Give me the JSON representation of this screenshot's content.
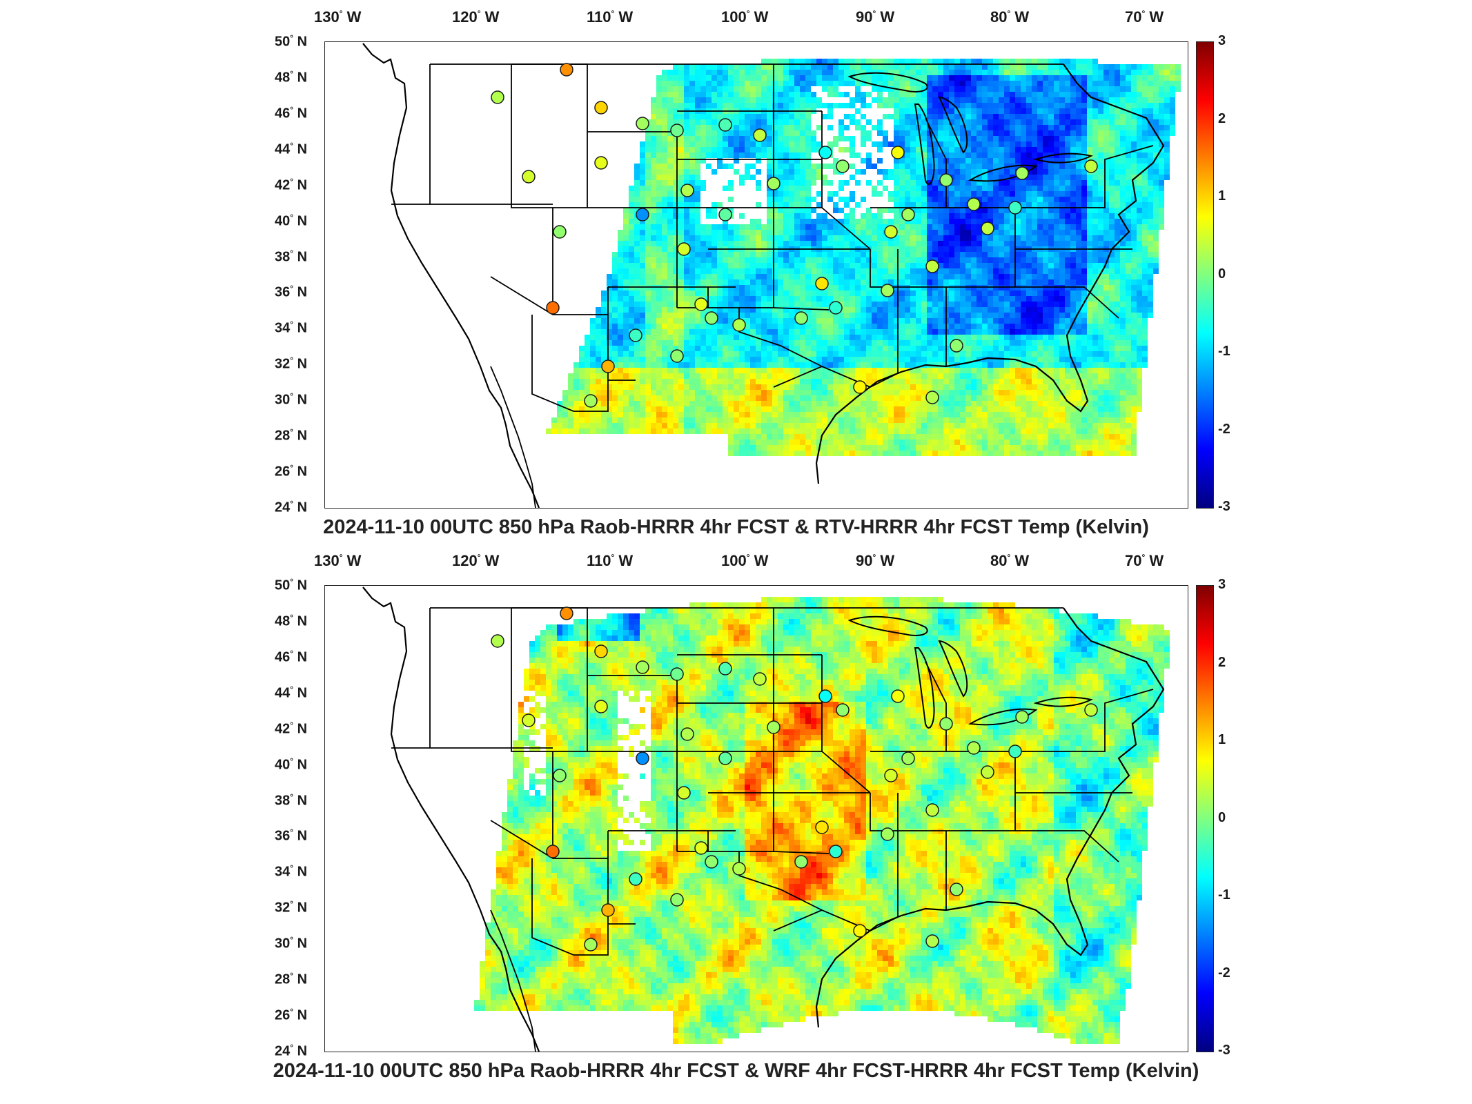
{
  "panels": [
    {
      "title": "2024-11-10 00UTC 850 hPa Raob-HRRR 4hr FCST & RTV-HRRR 4hr FCST Temp (Kelvin)",
      "field_style": "rtv"
    },
    {
      "title": "2024-11-10 00UTC 850 hPa Raob-HRRR 4hr FCST & WRF 4hr FCST-HRRR 4hr FCST Temp (Kelvin)",
      "field_style": "wrf"
    }
  ],
  "lon_labels": [
    "130",
    "120",
    "110",
    "100",
    "90",
    "80",
    "70"
  ],
  "lon_suffix": "W",
  "lat_labels": [
    "50",
    "48",
    "46",
    "44",
    "42",
    "40",
    "38",
    "36",
    "34",
    "32",
    "30",
    "28",
    "26",
    "24"
  ],
  "lat_suffix": "N",
  "colorbar": {
    "ticks": [
      "3",
      "2",
      "1",
      "0",
      "-1",
      "-2",
      "-3"
    ],
    "min": -3,
    "max": 3,
    "colormap": "jet"
  },
  "colors": {
    "border": "#000000",
    "marker_edge": "#1a1a1a"
  }
}
